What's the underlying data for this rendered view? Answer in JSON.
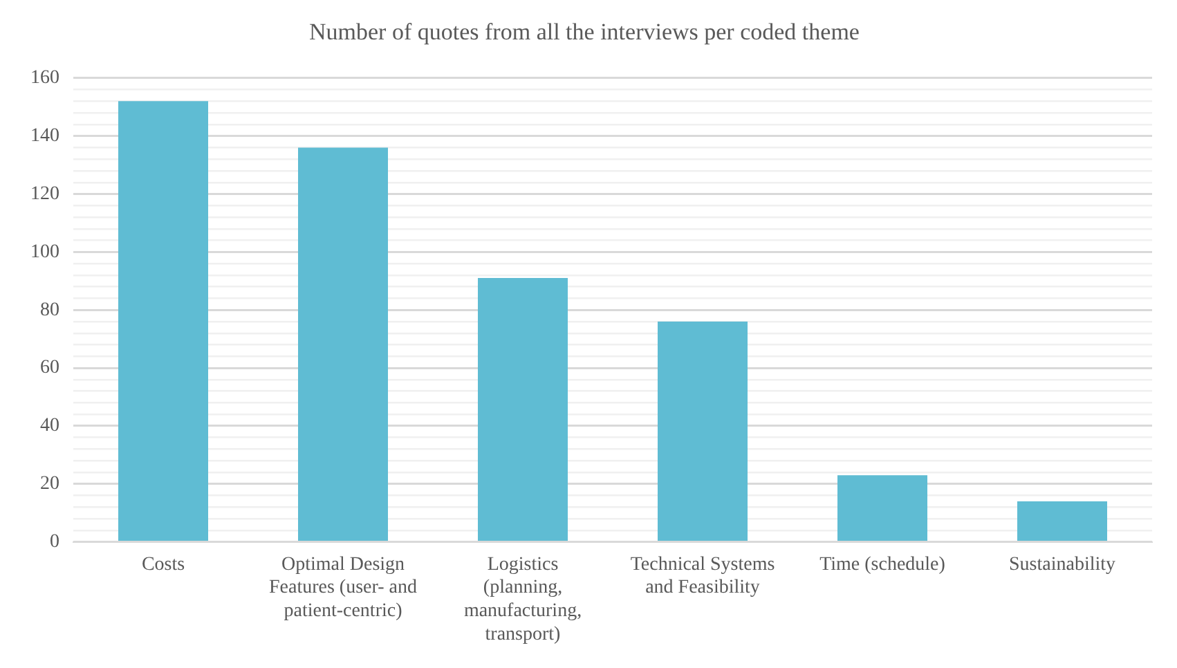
{
  "chart_data": {
    "type": "bar",
    "title": "Number of quotes from all the interviews per coded theme",
    "categories": [
      "Costs",
      "Optimal Design Features (user- and patient-centric)",
      "Logistics (planning, manufacturing, transport)",
      "Technical Systems and Feasibility",
      "Time (schedule)",
      "Sustainability"
    ],
    "values": [
      152,
      136,
      91,
      76,
      23,
      14
    ],
    "color": "#5fbcd3",
    "ylim": [
      0,
      160
    ],
    "yticks": [
      0,
      {
        "value": 4,
        "label": null
      },
      {
        "value": 8,
        "label": null
      },
      {
        "value": 12,
        "label": null
      },
      {
        "value": 16,
        "label": null
      },
      20,
      {
        "value": 24,
        "label": null
      },
      {
        "value": 28,
        "label": null
      },
      {
        "value": 32,
        "label": null
      },
      {
        "value": 36,
        "label": null
      },
      40,
      {
        "value": 44,
        "label": null
      },
      {
        "value": 48,
        "label": null
      },
      {
        "value": 52,
        "label": null
      },
      {
        "value": 56,
        "label": null
      },
      60,
      {
        "value": 64,
        "label": null
      },
      {
        "value": 68,
        "label": null
      },
      {
        "value": 72,
        "label": null
      },
      {
        "value": 76,
        "label": null
      },
      80,
      {
        "value": 84,
        "label": null
      },
      {
        "value": 88,
        "label": null
      },
      {
        "value": 92,
        "label": null
      },
      {
        "value": 96,
        "label": null
      },
      100,
      {
        "value": 104,
        "label": null
      },
      {
        "value": 108,
        "label": null
      },
      {
        "value": 112,
        "label": null
      },
      {
        "value": 116,
        "label": null
      },
      120,
      {
        "value": 124,
        "label": null
      },
      {
        "value": 128,
        "label": null
      },
      {
        "value": 132,
        "label": null
      },
      {
        "value": 136,
        "label": null
      },
      140,
      {
        "value": 144,
        "label": null
      },
      {
        "value": 148,
        "label": null
      },
      {
        "value": 152,
        "label": null
      },
      {
        "value": 156,
        "label": null
      },
      160
    ],
    "grid": "y",
    "legend": false
  }
}
